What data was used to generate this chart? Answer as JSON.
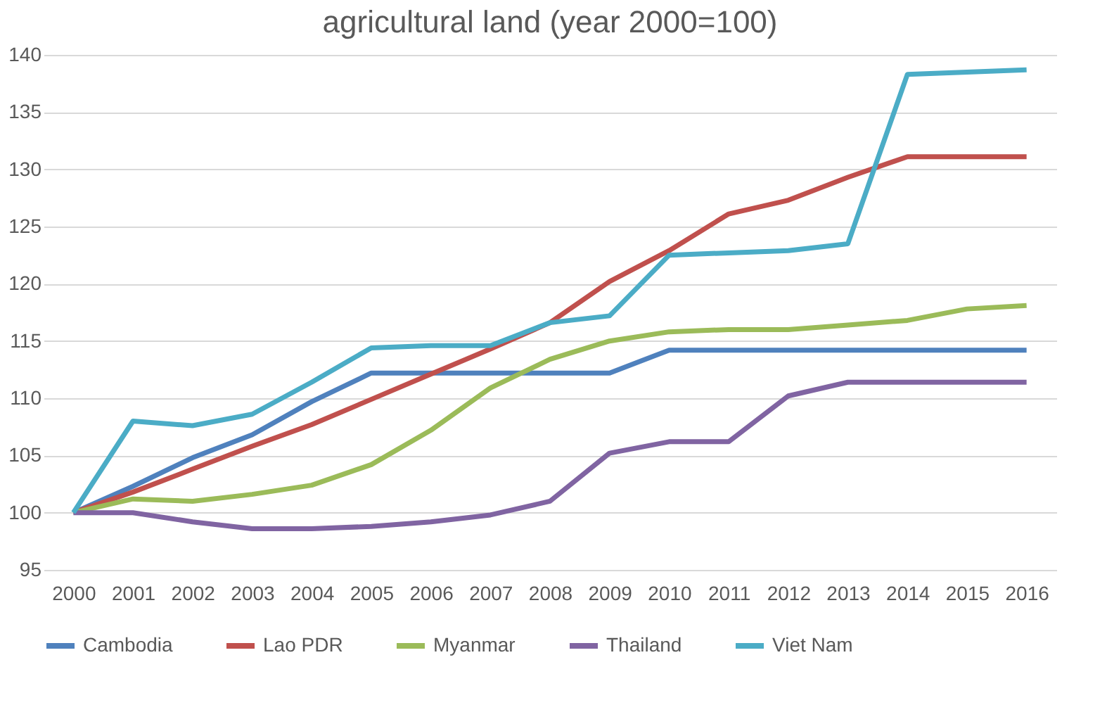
{
  "chart_data": {
    "type": "line",
    "title": "agricultural land (year 2000=100)",
    "categories": [
      "2000",
      "2001",
      "2002",
      "2003",
      "2004",
      "2005",
      "2006",
      "2007",
      "2008",
      "2009",
      "2010",
      "2011",
      "2012",
      "2013",
      "2014",
      "2015",
      "2016"
    ],
    "series": [
      {
        "name": "Cambodia",
        "color": "#4f81bd",
        "values": [
          100,
          102.3,
          104.8,
          106.8,
          109.7,
          112.2,
          112.2,
          112.2,
          112.2,
          112.2,
          114.2,
          114.2,
          114.2,
          114.2,
          114.2,
          114.2,
          114.2
        ]
      },
      {
        "name": "Lao PDR",
        "color": "#c0504d",
        "values": [
          100,
          101.8,
          103.8,
          105.8,
          107.7,
          109.9,
          112.1,
          114.3,
          116.6,
          120.2,
          122.9,
          126.1,
          127.3,
          129.3,
          131.1,
          131.1,
          131.1
        ]
      },
      {
        "name": "Myanmar",
        "color": "#9bbb59",
        "values": [
          100,
          101.2,
          101.0,
          101.6,
          102.4,
          104.2,
          107.2,
          110.9,
          113.4,
          115.0,
          115.8,
          116.0,
          116.0,
          116.4,
          116.8,
          117.8,
          118.1
        ]
      },
      {
        "name": "Thailand",
        "color": "#8064a2",
        "values": [
          100,
          100,
          99.2,
          98.6,
          98.6,
          98.8,
          99.2,
          99.8,
          101.0,
          105.2,
          106.2,
          106.2,
          110.2,
          111.4,
          111.4,
          111.4,
          111.4
        ]
      },
      {
        "name": "Viet Nam",
        "color": "#4bacc6",
        "values": [
          100,
          108.0,
          107.6,
          108.6,
          111.4,
          114.4,
          114.6,
          114.6,
          116.6,
          117.2,
          122.5,
          122.7,
          122.9,
          123.5,
          138.3,
          138.5,
          138.7
        ]
      }
    ],
    "ylim": [
      95,
      140
    ],
    "yticks": [
      95,
      100,
      105,
      110,
      115,
      120,
      125,
      130,
      135,
      140
    ],
    "grid": "y",
    "legend": "bottom",
    "marker": "none",
    "line_style": "solid"
  }
}
